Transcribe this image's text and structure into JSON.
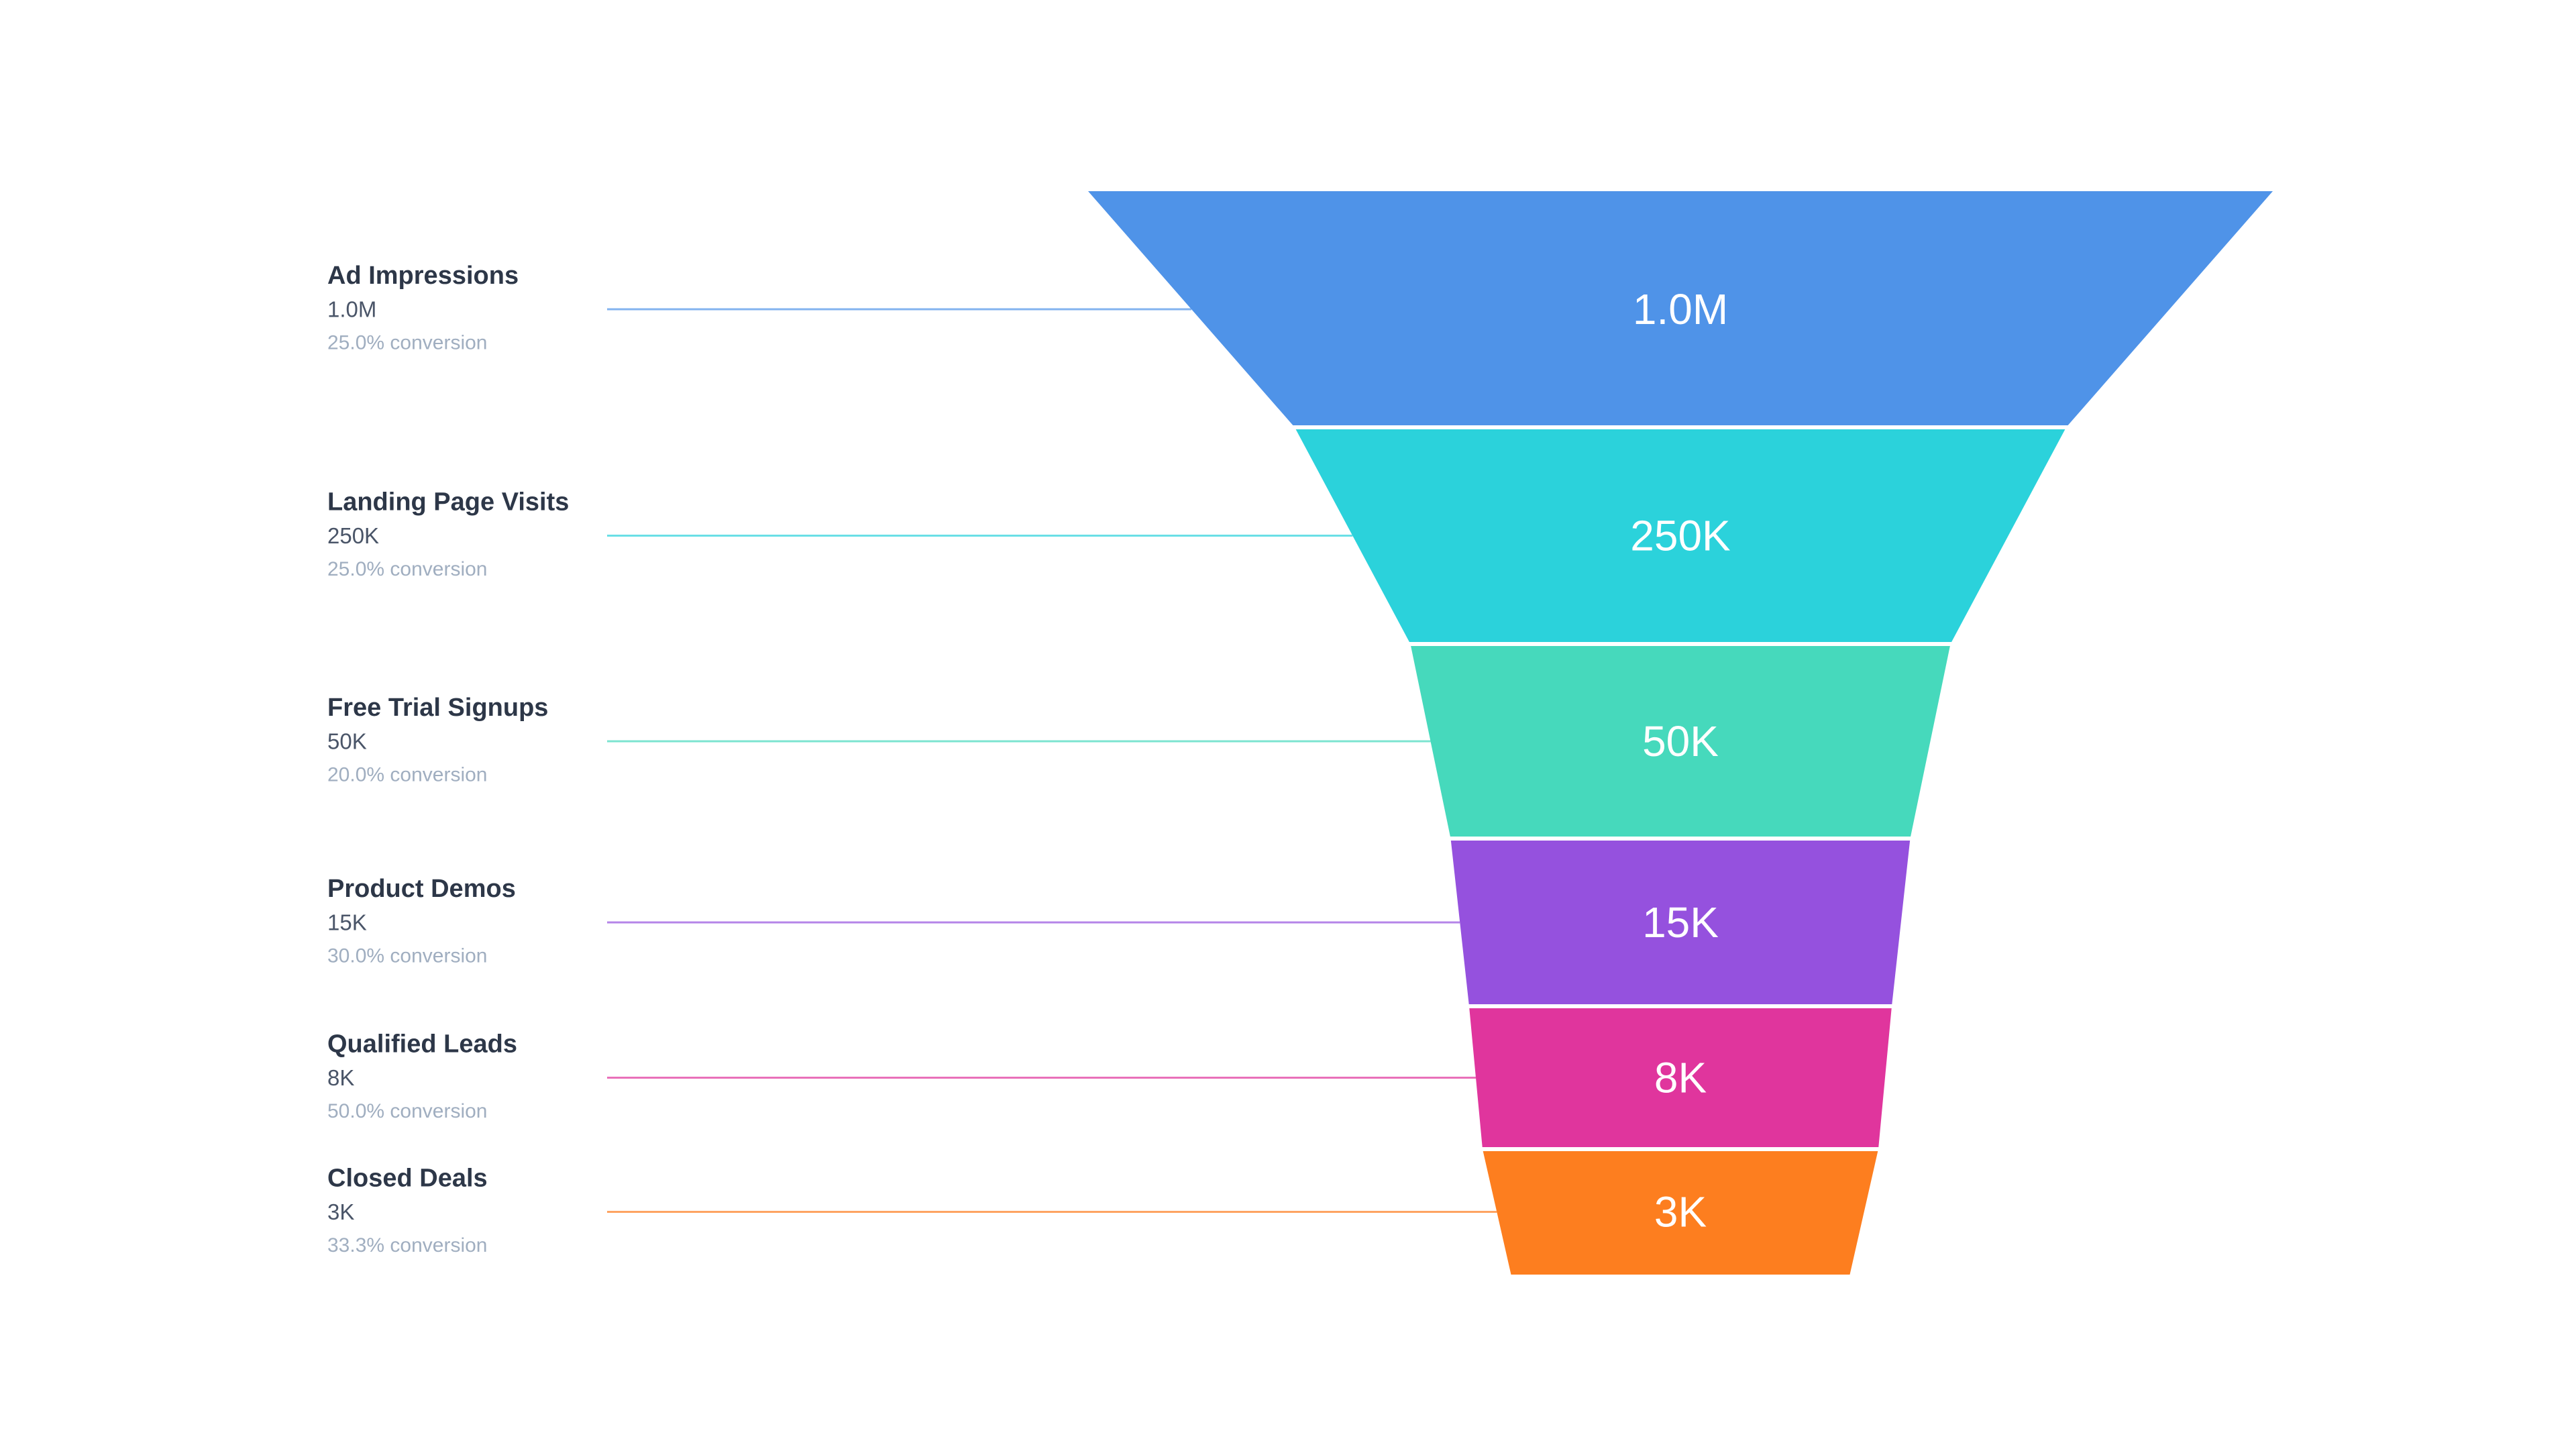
{
  "chart_data": {
    "type": "funnel",
    "stages": [
      {
        "name": "Ad Impressions",
        "value": 1000000,
        "value_label": "1.0M",
        "conversion_label": "25.0% conversion",
        "color": "#4f93e8"
      },
      {
        "name": "Landing Page Visits",
        "value": 250000,
        "value_label": "250K",
        "conversion_label": "25.0% conversion",
        "color": "#2bd2db"
      },
      {
        "name": "Free Trial Signups",
        "value": 50000,
        "value_label": "50K",
        "conversion_label": "20.0% conversion",
        "color": "#46d9bc"
      },
      {
        "name": "Product Demos",
        "value": 15000,
        "value_label": "15K",
        "conversion_label": "30.0% conversion",
        "color": "#9551de"
      },
      {
        "name": "Qualified Leads",
        "value": 7500,
        "value_label": "8K",
        "conversion_label": "50.0% conversion",
        "color": "#e0359d"
      },
      {
        "name": "Closed Deals",
        "value": 2500,
        "value_label": "3K",
        "conversion_label": "33.3% conversion",
        "color": "#fd7e1f"
      }
    ]
  }
}
